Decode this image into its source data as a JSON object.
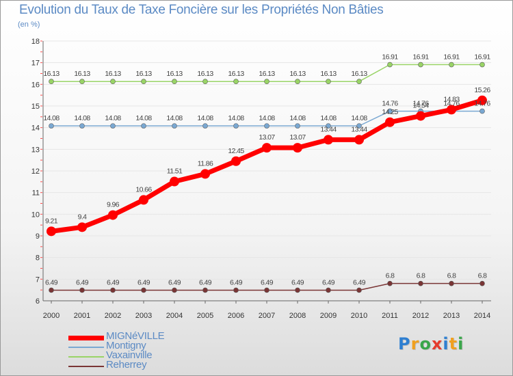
{
  "title": "Evolution du Taux de Taxe Foncière sur les Propriétés Non Bâties",
  "subtitle": "(en %)",
  "logo": {
    "text": "Proxiti",
    "letter_colors": [
      "#2e7fd1",
      "#f0a020",
      "#3aa64a",
      "#e53b2d",
      "#2e7fd1",
      "#f0a020",
      "#3aa64a"
    ]
  },
  "chart_data": {
    "type": "line",
    "title": "Evolution du Taux de Taxe Foncière sur les Propriétés Non Bâties",
    "ylabel": "(en %)",
    "xlabel": "",
    "ylim": [
      6,
      18
    ],
    "y_ticks": [
      "6",
      "7",
      "8",
      "9",
      "10",
      "11",
      "12",
      "13",
      "14",
      "15",
      "16",
      "17",
      "18"
    ],
    "categories": [
      "2000",
      "2001",
      "2002",
      "2003",
      "2004",
      "2005",
      "2006",
      "2007",
      "2008",
      "2009",
      "2010",
      "2011",
      "2012",
      "2013",
      "2014"
    ],
    "series": [
      {
        "name": "Vaxainville",
        "color": "#99d466",
        "width": 1.5,
        "marker": 3.5,
        "values": [
          16.13,
          16.13,
          16.13,
          16.13,
          16.13,
          16.13,
          16.13,
          16.13,
          16.13,
          16.13,
          16.13,
          16.91,
          16.91,
          16.91,
          16.91
        ],
        "labels": [
          "16.13",
          "16.13",
          "16.13",
          "16.13",
          "16.13",
          "16.13",
          "16.13",
          "16.13",
          "16.13",
          "16.13",
          "16.13",
          "16.91",
          "16.91",
          "16.91",
          "16.91"
        ]
      },
      {
        "name": "Montigny",
        "color": "#7aa8d2",
        "width": 1.5,
        "marker": 3.5,
        "values": [
          14.08,
          14.08,
          14.08,
          14.08,
          14.08,
          14.08,
          14.08,
          14.08,
          14.08,
          14.08,
          14.08,
          14.76,
          14.76,
          14.76,
          14.76
        ],
        "labels": [
          "14.08",
          "14.08",
          "14.08",
          "14.08",
          "14.08",
          "14.08",
          "14.08",
          "14.08",
          "14.08",
          "14.08",
          "14.08",
          "14.76",
          "14.76",
          "14.76",
          "14.76"
        ]
      },
      {
        "name": "Reherrey",
        "color": "#7a3535",
        "width": 1.5,
        "marker": 3.5,
        "values": [
          6.49,
          6.49,
          6.49,
          6.49,
          6.49,
          6.49,
          6.49,
          6.49,
          6.49,
          6.49,
          6.49,
          6.8,
          6.8,
          6.8,
          6.8
        ],
        "labels": [
          "6.49",
          "6.49",
          "6.49",
          "6.49",
          "6.49",
          "6.49",
          "6.49",
          "6.49",
          "6.49",
          "6.49",
          "6.49",
          "6.8",
          "6.8",
          "6.8",
          "6.8"
        ]
      },
      {
        "name": "MIGNéVILLE",
        "color": "#ff0000",
        "width": 7,
        "marker": 7,
        "values": [
          9.21,
          9.4,
          9.96,
          10.66,
          11.51,
          11.86,
          12.45,
          13.07,
          13.07,
          13.44,
          13.44,
          14.25,
          14.54,
          14.83,
          15.26
        ],
        "labels": [
          "9.21",
          "9.4",
          "9.96",
          "10.66",
          "11.51",
          "11.86",
          "12.45",
          "13.07",
          "13.07",
          "13.44",
          "13.44",
          "14.25",
          "14.54",
          "14.83",
          "15.26"
        ]
      }
    ],
    "legend": [
      {
        "name": "MIGNéVILLE",
        "color": "#ff0000",
        "thickness": 7
      },
      {
        "name": "Montigny",
        "color": "#7aa8d2",
        "thickness": 2
      },
      {
        "name": "Vaxainville",
        "color": "#99d466",
        "thickness": 2
      },
      {
        "name": "Reherrey",
        "color": "#7a3535",
        "thickness": 2
      }
    ],
    "legend_position": "bottom-left"
  }
}
